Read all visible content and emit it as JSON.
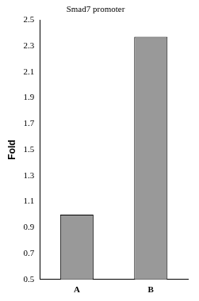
{
  "chart_data": {
    "type": "bar",
    "title": "Smad7 promoter",
    "y_label": "Fold",
    "categories": [
      "A",
      "B"
    ],
    "values": [
      1.0,
      2.37
    ],
    "color": "#999999",
    "ylim": [
      0.5,
      2.5
    ],
    "yticks": [
      0.5,
      0.7,
      0.9,
      1.1,
      1.3,
      1.5,
      1.7,
      1.9,
      2.1,
      2.3,
      2.5
    ],
    "grid": false
  }
}
